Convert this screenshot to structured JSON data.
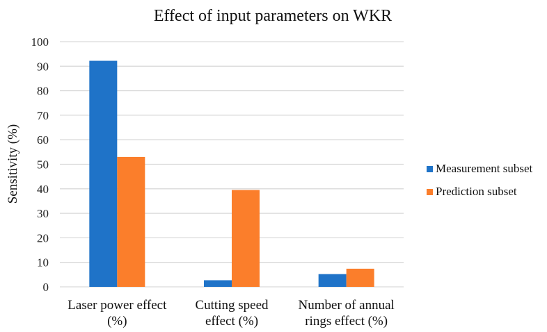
{
  "chart_data": {
    "type": "bar",
    "title": "Effect of input parameters on WKR",
    "ylabel": "Sensitivity (%)",
    "xlabel": "",
    "ylim": [
      0,
      100
    ],
    "yticks": [
      0,
      10,
      20,
      30,
      40,
      50,
      60,
      70,
      80,
      90,
      100
    ],
    "grid": true,
    "legend_position": "right",
    "categories": [
      [
        "Laser power effect",
        "(%)"
      ],
      [
        "Cutting speed",
        "effect (%)"
      ],
      [
        "Number of annual",
        "rings effect (%)"
      ]
    ],
    "series": [
      {
        "name": "Measurement subset",
        "color": "#1f73c8",
        "values": [
          92.2,
          2.7,
          5.2
        ]
      },
      {
        "name": "Prediction subset",
        "color": "#fb7e2b",
        "values": [
          53.0,
          39.5,
          7.4
        ]
      }
    ]
  }
}
